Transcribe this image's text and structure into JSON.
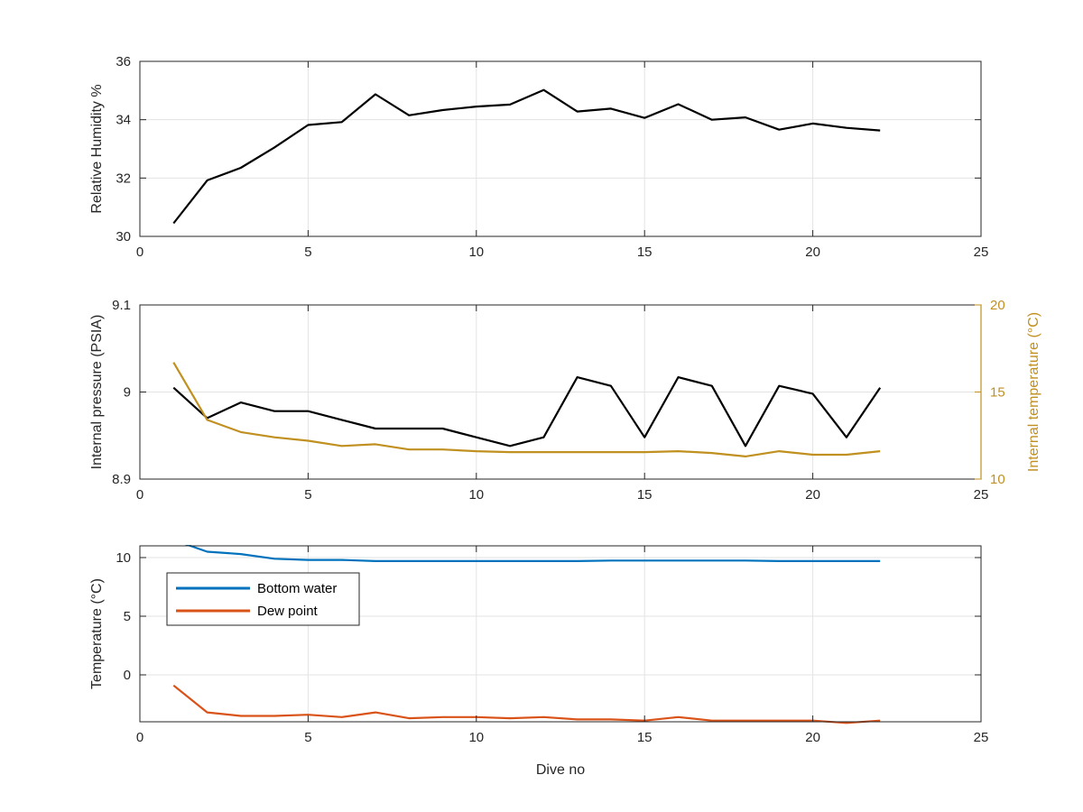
{
  "chart_data": [
    {
      "type": "line",
      "ylabel": "Relative Humidity %",
      "xlabel": "",
      "xlim": [
        0,
        25
      ],
      "ylim": [
        30,
        36
      ],
      "xticks": [
        "0",
        "5",
        "10",
        "15",
        "20",
        "25"
      ],
      "yticks": [
        "30",
        "32",
        "34",
        "36"
      ],
      "grid": true,
      "series": [
        {
          "color": "#000000",
          "x": [
            1,
            2,
            3,
            4,
            5,
            6,
            7,
            8,
            9,
            10,
            11,
            12,
            13,
            14,
            15,
            16,
            17,
            18,
            19,
            20,
            21,
            22
          ],
          "y": [
            30.45,
            31.92,
            32.35,
            33.05,
            33.82,
            33.92,
            34.87,
            34.15,
            34.33,
            34.45,
            34.52,
            35.02,
            34.28,
            34.38,
            34.06,
            34.53,
            34.0,
            34.08,
            33.66,
            33.87,
            33.72,
            33.63
          ]
        }
      ]
    },
    {
      "type": "line",
      "ylabel": "Internal pressure (PSIA)",
      "ylabel_right": "Internal temperature (°C)",
      "xlabel": "",
      "xlim": [
        0,
        25
      ],
      "ylim": [
        8.9,
        9.1
      ],
      "ylim_right": [
        10,
        20
      ],
      "xticks": [
        "0",
        "5",
        "10",
        "15",
        "20",
        "25"
      ],
      "yticks": [
        "8.9",
        "9",
        "9.1"
      ],
      "yticks_right": [
        "10",
        "15",
        "20"
      ],
      "right_axis_color": "#C09020",
      "grid": true,
      "series": [
        {
          "axis": "left",
          "color": "#000000",
          "x": [
            1,
            2,
            3,
            4,
            5,
            6,
            7,
            8,
            9,
            10,
            11,
            12,
            13,
            14,
            15,
            16,
            17,
            18,
            19,
            20,
            21,
            22
          ],
          "y": [
            9.005,
            8.97,
            8.988,
            8.978,
            8.978,
            8.968,
            8.958,
            8.958,
            8.958,
            8.948,
            8.938,
            8.948,
            9.017,
            9.007,
            8.948,
            9.017,
            9.007,
            8.938,
            9.007,
            8.998,
            8.948,
            9.005
          ]
        },
        {
          "axis": "right",
          "color": "#C09020",
          "x": [
            1,
            2,
            3,
            4,
            5,
            6,
            7,
            8,
            9,
            10,
            11,
            12,
            13,
            14,
            15,
            16,
            17,
            18,
            19,
            20,
            21,
            22
          ],
          "y": [
            16.7,
            13.4,
            12.7,
            12.4,
            12.2,
            11.9,
            12.0,
            11.7,
            11.7,
            11.6,
            11.55,
            11.55,
            11.55,
            11.55,
            11.55,
            11.6,
            11.5,
            11.3,
            11.6,
            11.4,
            11.4,
            11.6
          ]
        }
      ]
    },
    {
      "type": "line",
      "ylabel": "Temperature (°C)",
      "xlabel": "Dive no",
      "xlim": [
        0,
        25
      ],
      "ylim": [
        -4,
        11
      ],
      "xticks": [
        "0",
        "5",
        "10",
        "15",
        "20",
        "25"
      ],
      "yticks": [
        "0",
        "5",
        "10"
      ],
      "grid": true,
      "legend": "top-left",
      "series": [
        {
          "name": "Bottom water",
          "color": "#0072BD",
          "x": [
            1,
            2,
            3,
            4,
            5,
            6,
            7,
            8,
            9,
            10,
            11,
            12,
            13,
            14,
            15,
            16,
            17,
            18,
            19,
            20,
            21,
            22
          ],
          "y": [
            11.5,
            10.5,
            10.3,
            9.9,
            9.8,
            9.8,
            9.7,
            9.7,
            9.7,
            9.7,
            9.7,
            9.7,
            9.7,
            9.75,
            9.75,
            9.75,
            9.75,
            9.75,
            9.7,
            9.7,
            9.7,
            9.7
          ]
        },
        {
          "name": "Dew point",
          "color": "#D95319",
          "x": [
            1,
            2,
            3,
            4,
            5,
            6,
            7,
            8,
            9,
            10,
            11,
            12,
            13,
            14,
            15,
            16,
            17,
            18,
            19,
            20,
            21,
            22
          ],
          "y": [
            -0.9,
            -3.2,
            -3.5,
            -3.5,
            -3.4,
            -3.6,
            -3.2,
            -3.7,
            -3.6,
            -3.6,
            -3.7,
            -3.6,
            -3.8,
            -3.8,
            -3.9,
            -3.6,
            -3.9,
            -3.9,
            -3.9,
            -3.9,
            -4.1,
            -3.9
          ]
        }
      ]
    }
  ]
}
